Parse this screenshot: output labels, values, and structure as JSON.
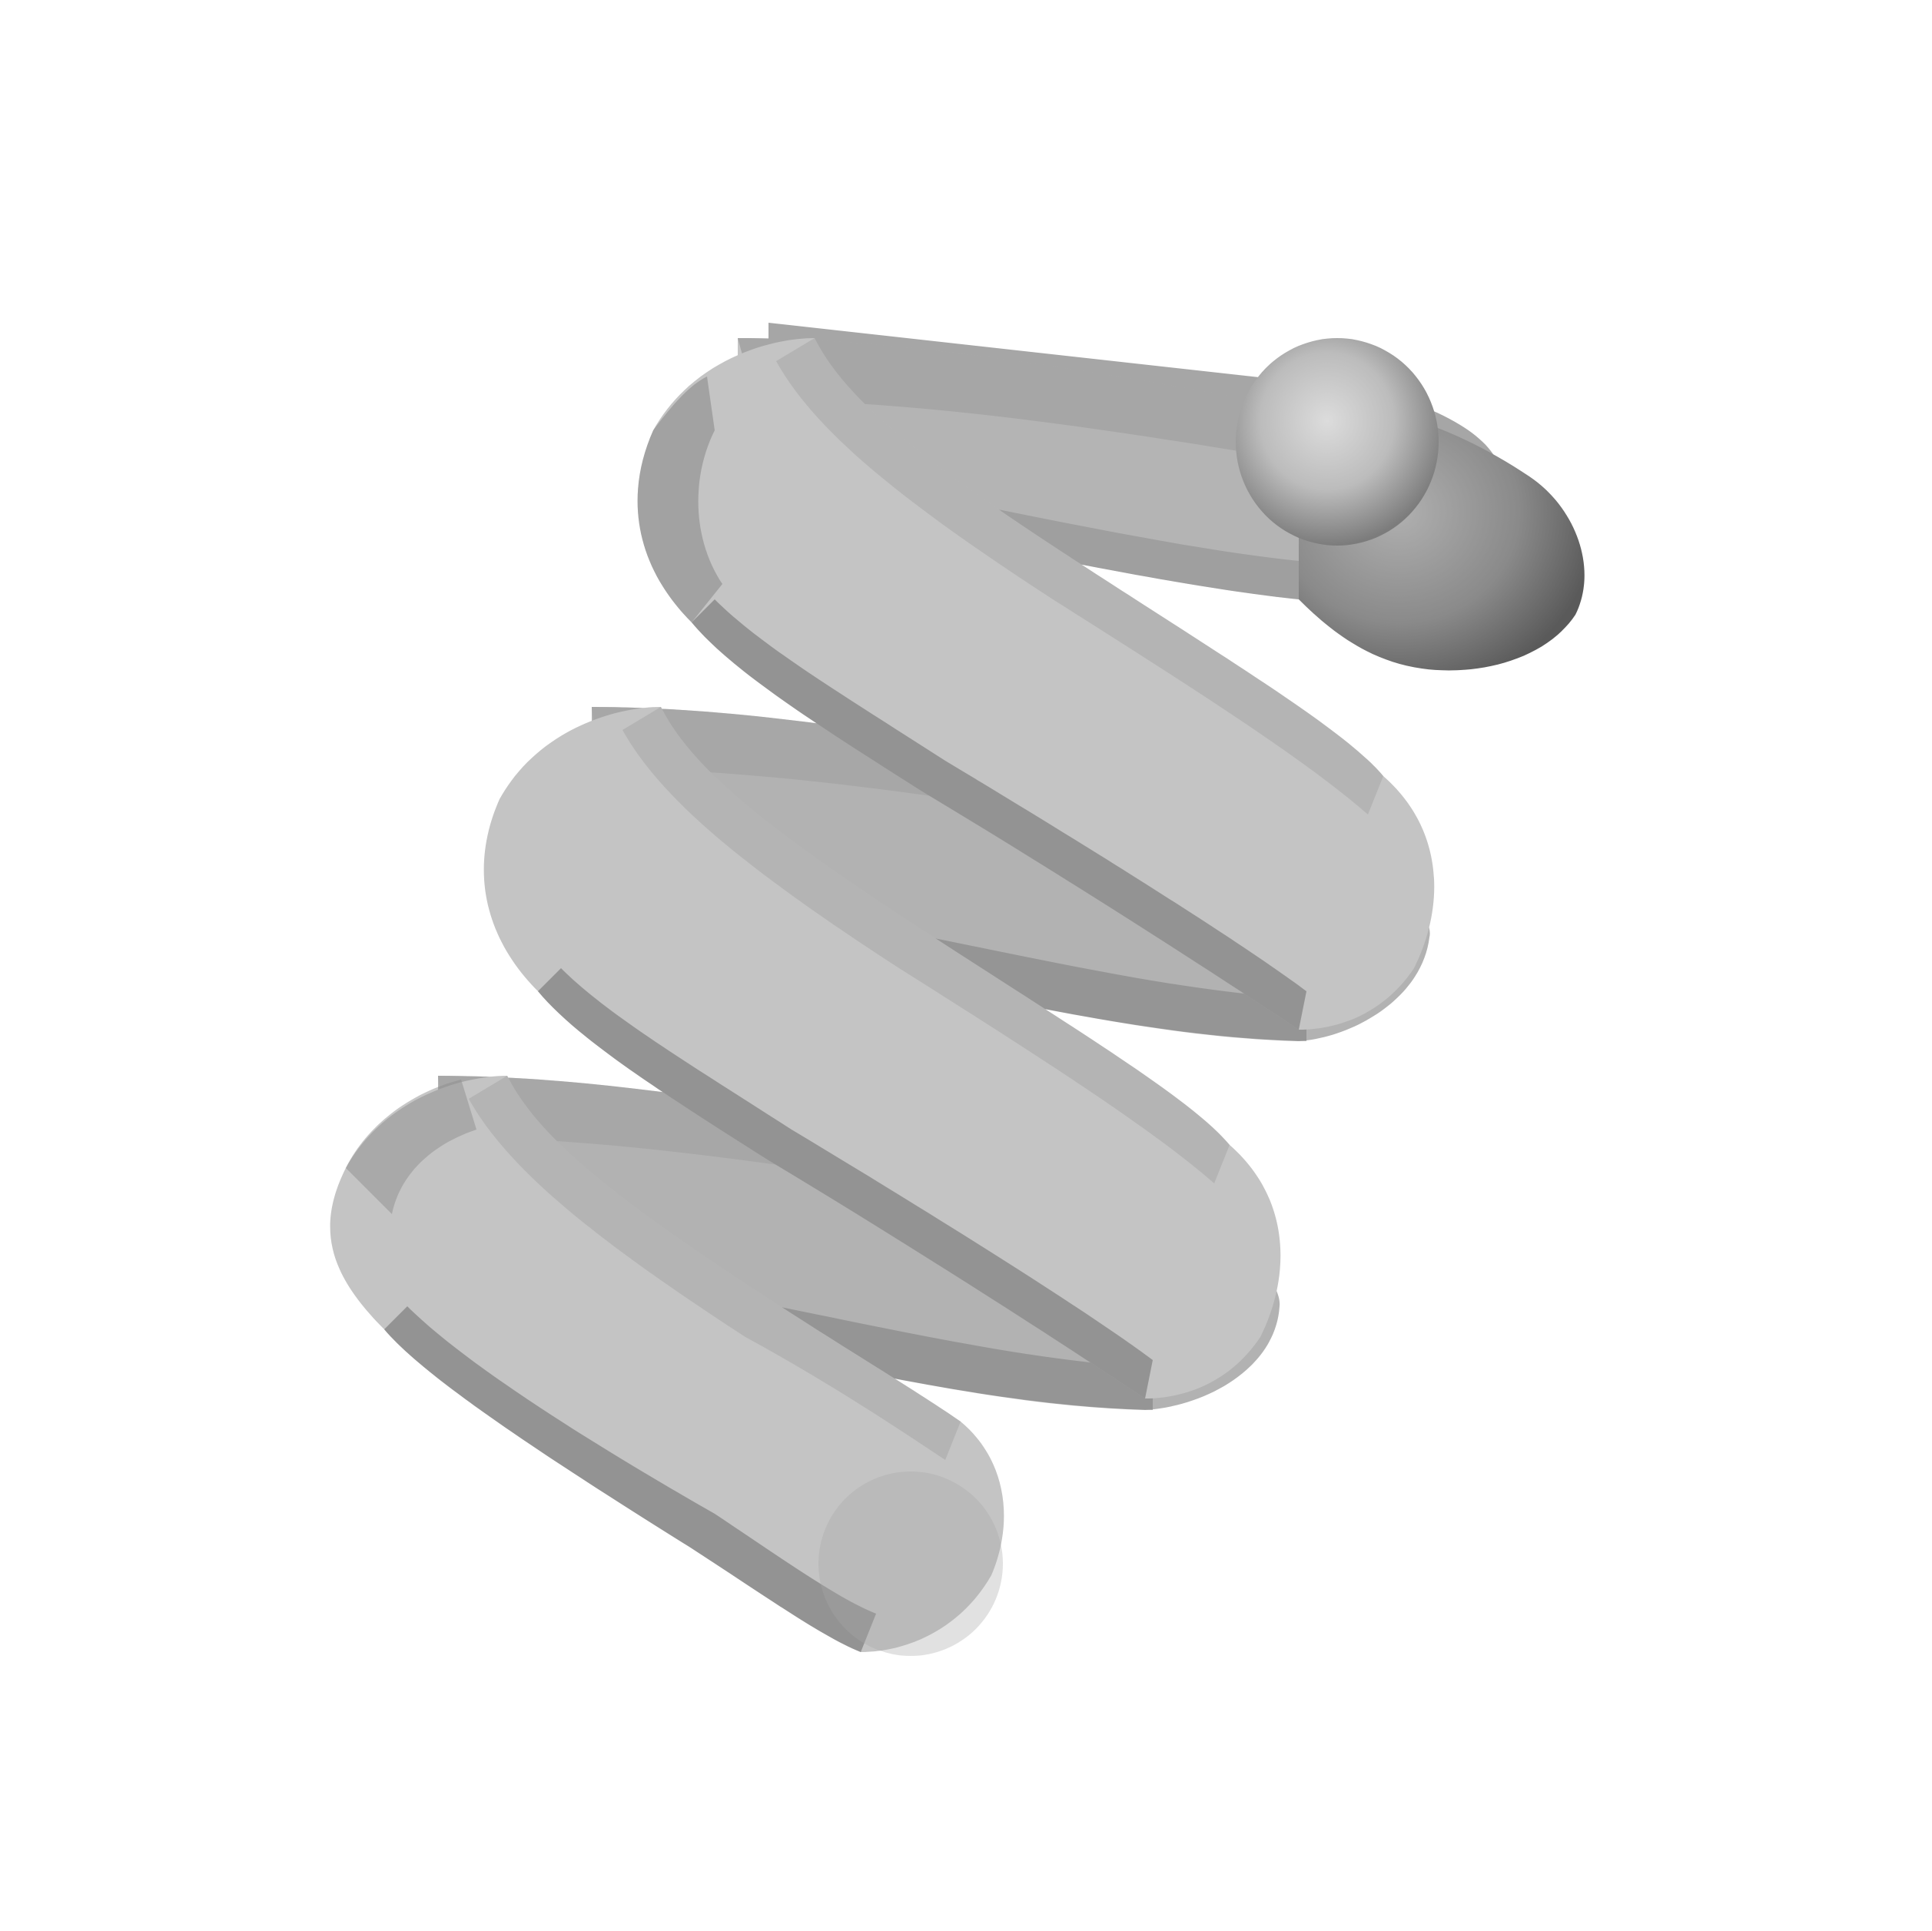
{
  "scene": {
    "subject": "coil-spring",
    "background_color": "#ffffff",
    "tube_shading": {
      "highlight": "#d8d8d8",
      "mid": "#b4b4b4",
      "shadow": "#5c5c5c"
    }
  }
}
